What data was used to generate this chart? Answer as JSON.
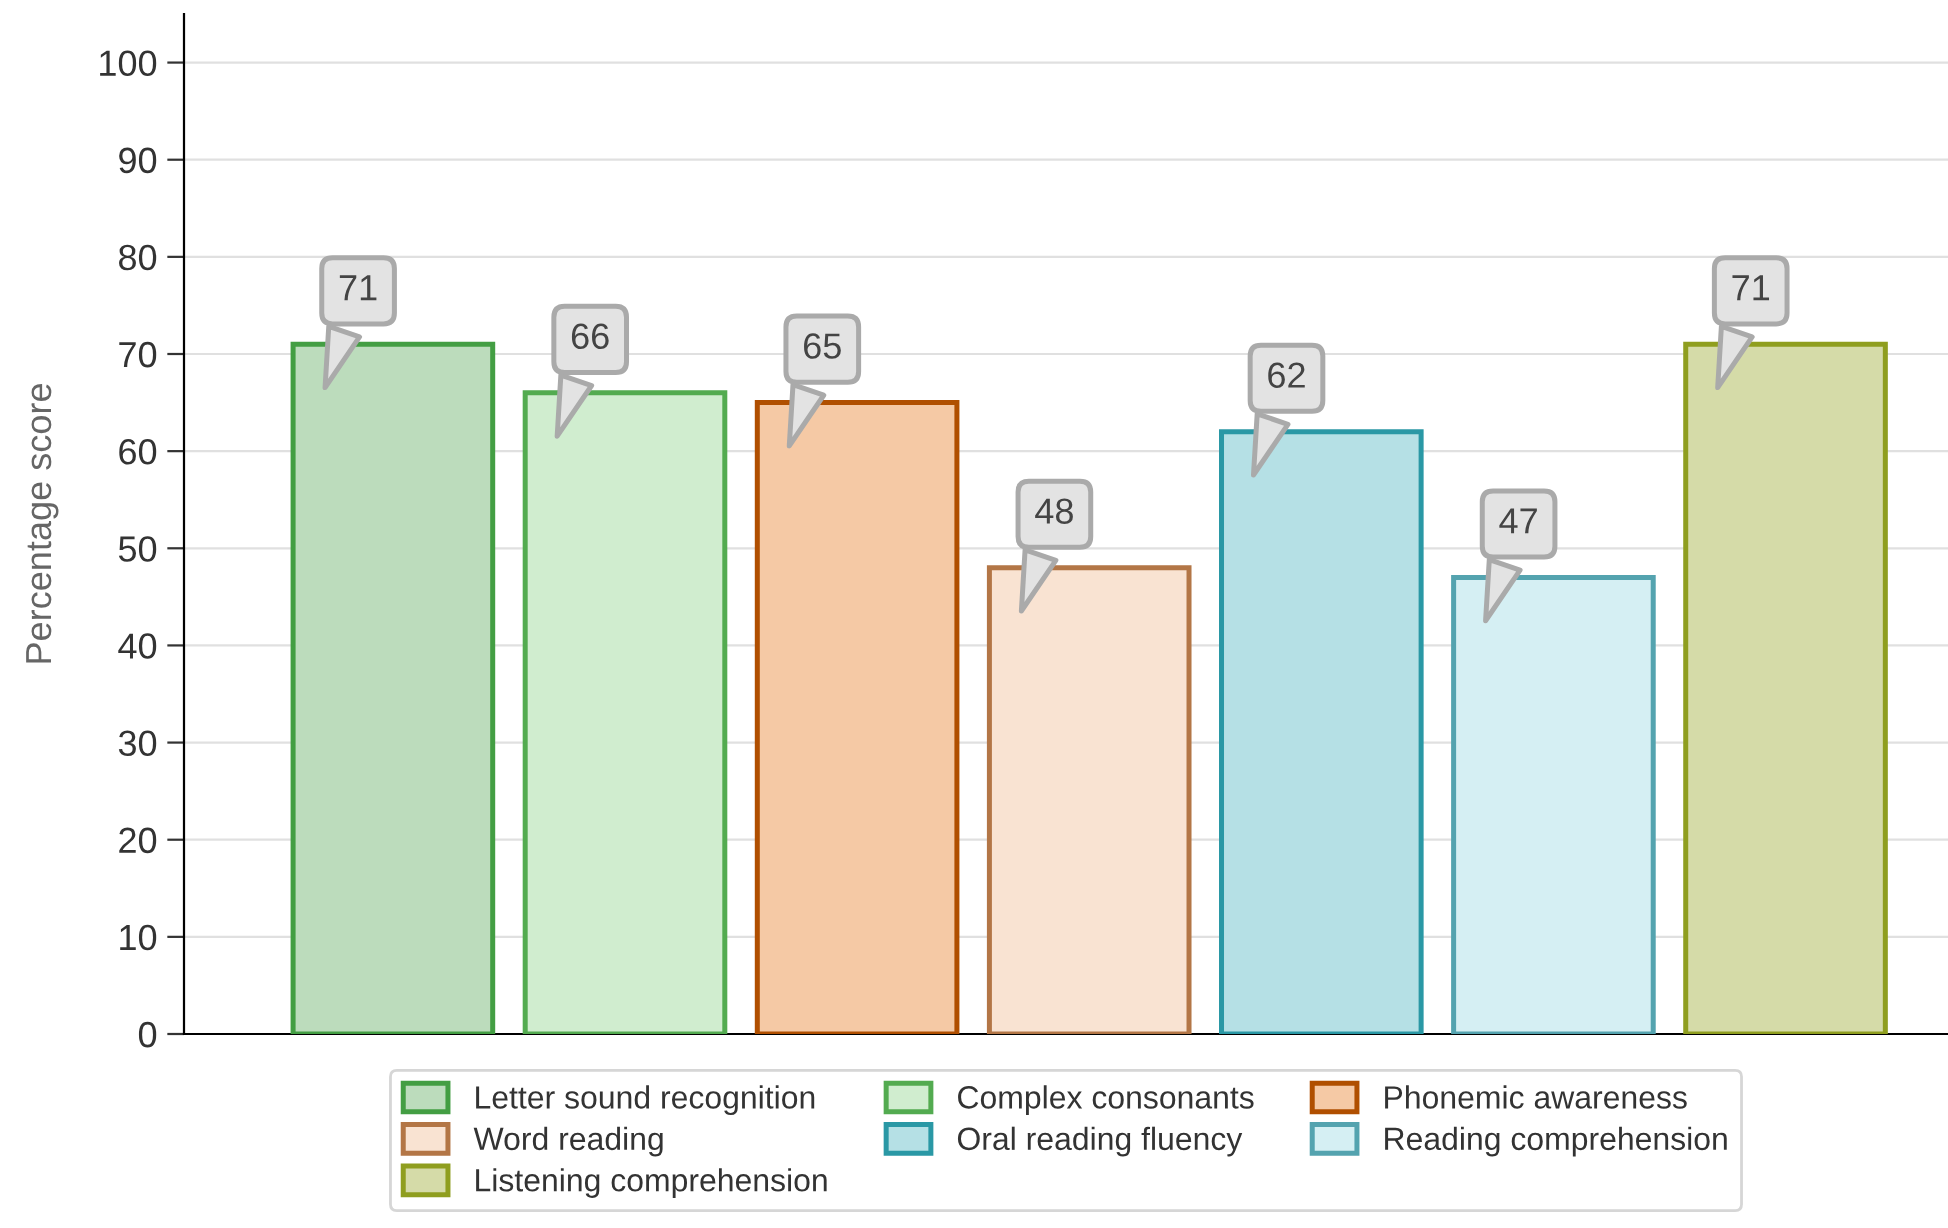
{
  "chart_data": {
    "type": "bar",
    "ylabel": "Percentage score",
    "categories": [
      null,
      null,
      null,
      null,
      null,
      null,
      null
    ],
    "series": [
      {
        "name": "Letter sound recognition",
        "color": "#bcdcbc",
        "values": [
          71,
          null,
          null,
          null,
          null,
          null,
          null
        ]
      },
      {
        "name": "Complex consonants",
        "color": "#d0edcf",
        "values": [
          null,
          66,
          null,
          null,
          null,
          null,
          null
        ]
      },
      {
        "name": "Phonemic awareness",
        "color": "#f5c9a5",
        "values": [
          null,
          null,
          65,
          null,
          null,
          null,
          null
        ]
      },
      {
        "name": "Word reading",
        "color": "#f9e3d2",
        "values": [
          null,
          null,
          null,
          48,
          null,
          null,
          null
        ]
      },
      {
        "name": "Oral reading fluency",
        "color": "#b5e0e5",
        "values": [
          null,
          null,
          null,
          null,
          62,
          null,
          null
        ]
      },
      {
        "name": "Reading comprehension",
        "color": "#d5eff3",
        "values": [
          null,
          null,
          null,
          null,
          null,
          47,
          null
        ]
      },
      {
        "name": "Listening comprehension",
        "color": "#d5dba8",
        "values": [
          null,
          null,
          null,
          null,
          null,
          null,
          71
        ]
      }
    ],
    "ylim": [
      0,
      105
    ],
    "yticks": [
      0,
      10,
      20,
      30,
      40,
      50,
      60,
      70,
      80,
      90,
      100
    ],
    "grid": "y",
    "legend": "bottom",
    "data_labels": true
  }
}
